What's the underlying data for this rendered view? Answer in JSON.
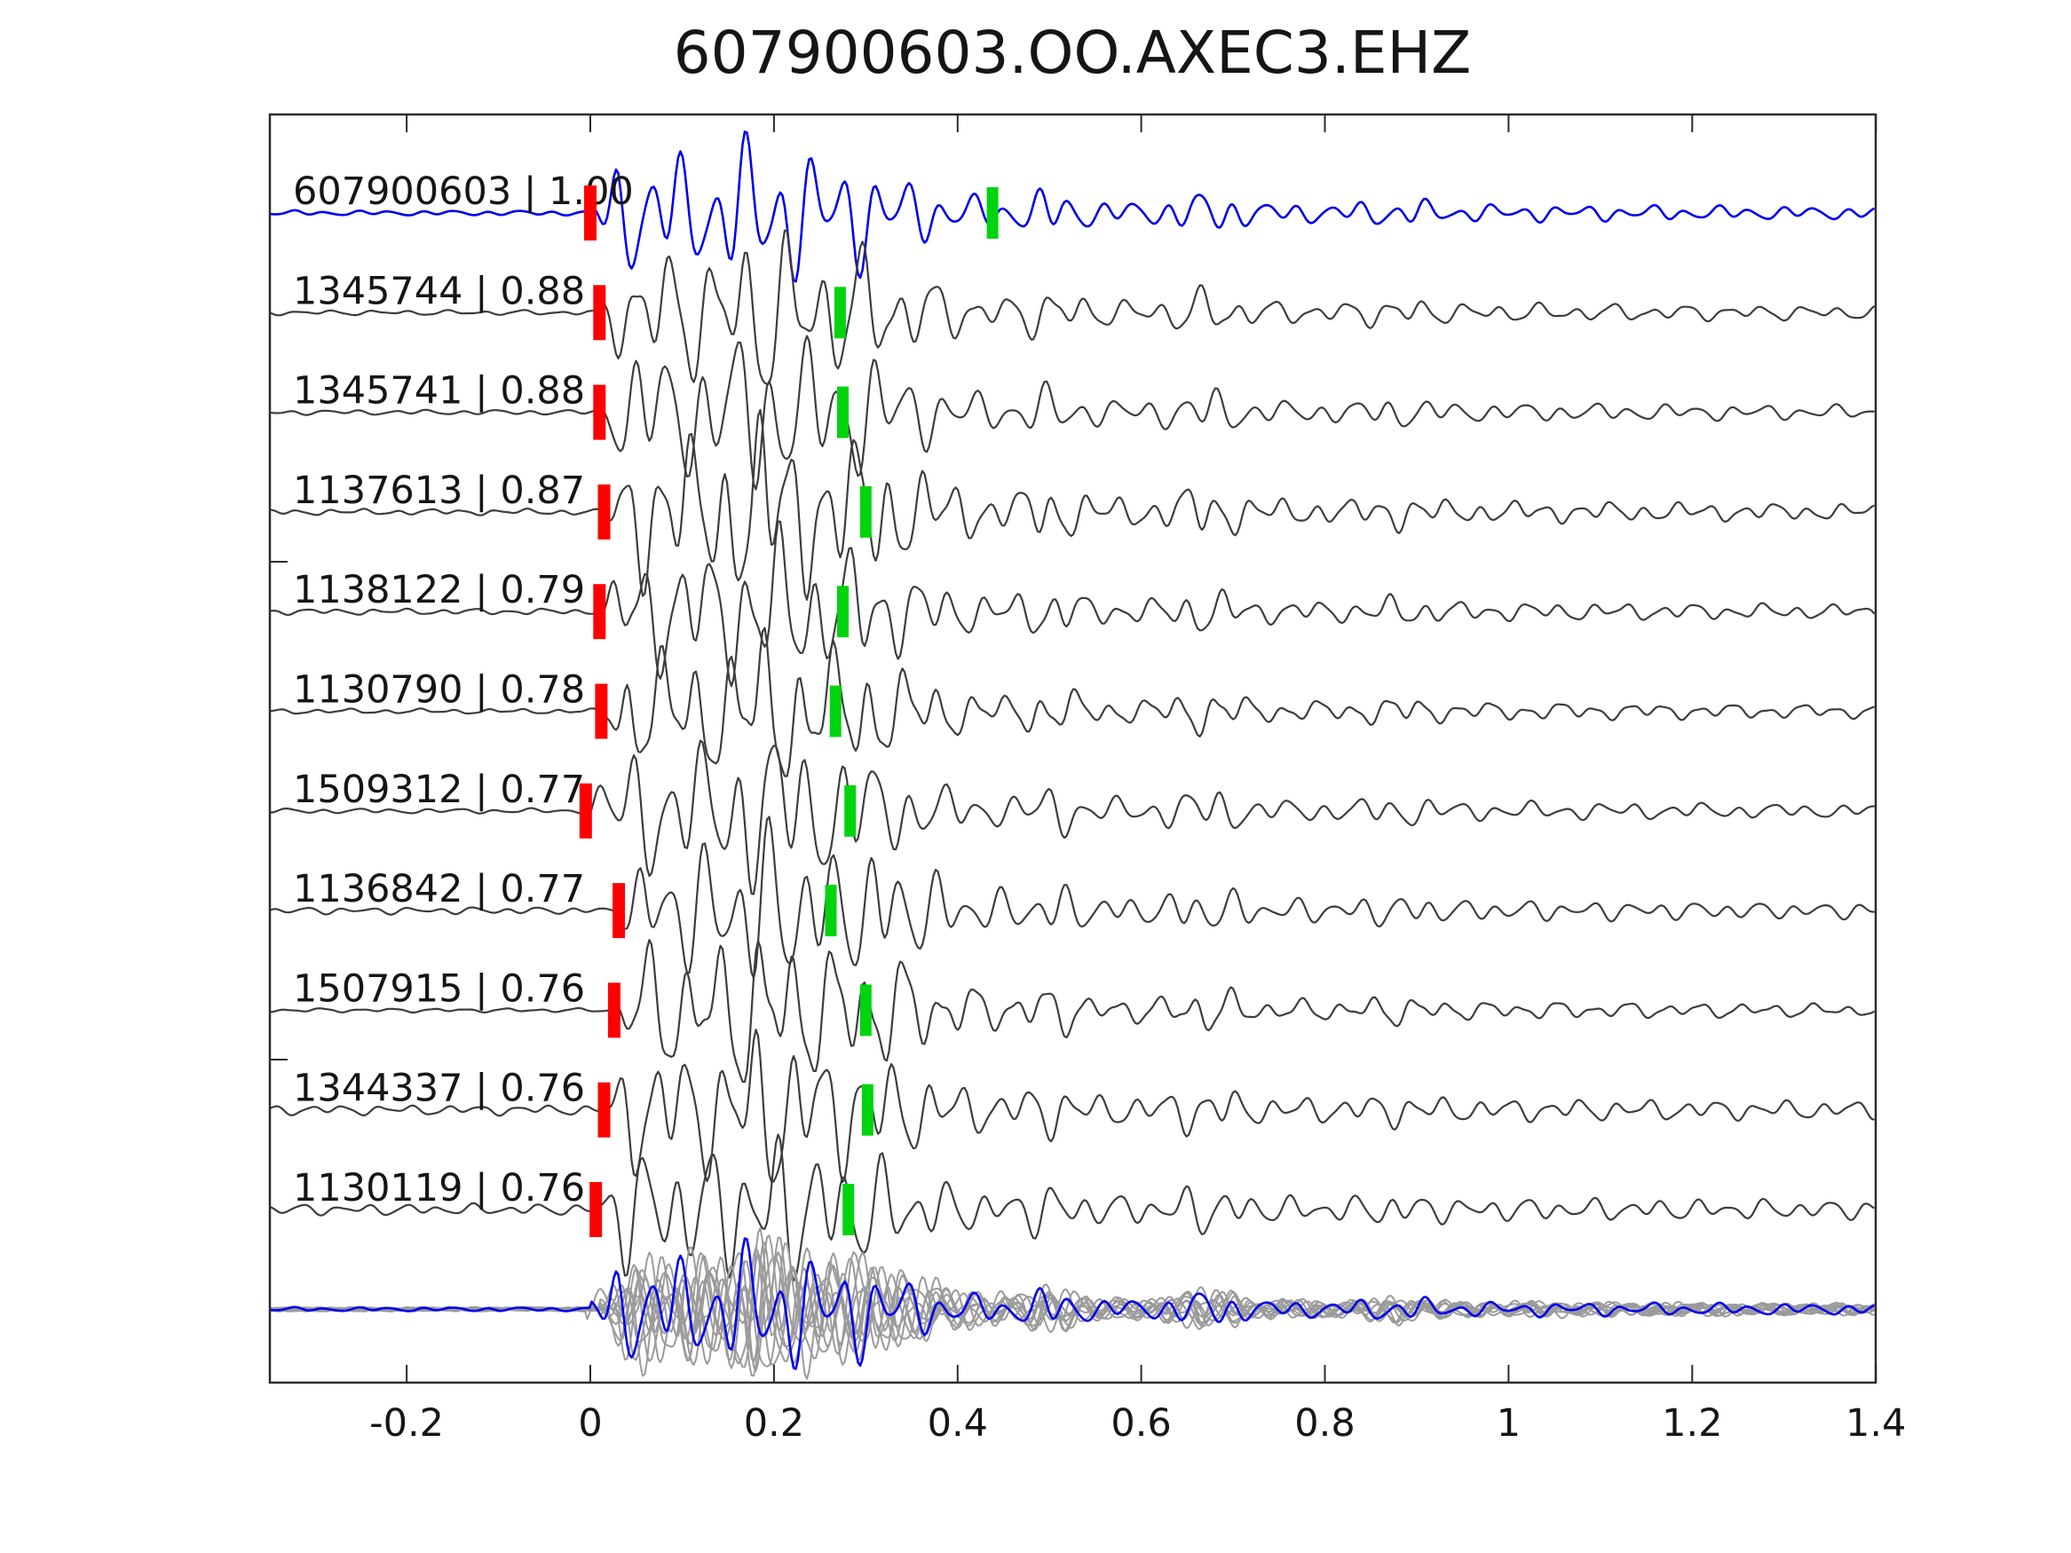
{
  "title": "607900603.OO.AXEC3.EHZ",
  "colors": {
    "template_blue": "#0000ee",
    "detection_gray": "#3d3d3d",
    "overlay_gray": "#9b9b9b",
    "pick_red": "#ff0000",
    "pick_green": "#00d40e",
    "axis": "#2b2b2b",
    "label_text": "#151515",
    "background": "#ffffff"
  },
  "chart_data": {
    "type": "line",
    "title": "607900603.OO.AXEC3.EHZ",
    "xlabel": "",
    "ylabel": "",
    "xlim": [
      -0.349,
      1.4
    ],
    "grid": false,
    "legend": "none",
    "x_ticks": [
      {
        "v": -0.2,
        "label": "-0.2"
      },
      {
        "v": 0,
        "label": "0"
      },
      {
        "v": 0.2,
        "label": "0.2"
      },
      {
        "v": 0.4,
        "label": "0.4"
      },
      {
        "v": 0.6,
        "label": "0.6"
      },
      {
        "v": 0.8,
        "label": "0.8"
      },
      {
        "v": 1,
        "label": "1"
      },
      {
        "v": 1.2,
        "label": "1.2"
      },
      {
        "v": 1.4,
        "label": "1.4"
      }
    ],
    "trace_rows": [
      {
        "label": "607900603 | 1.00",
        "id": "607900603",
        "correlation": 1.0,
        "role": "template",
        "pick_red_t": 0.0,
        "pick_green_t": 0.438
      },
      {
        "label": "1345744 | 0.88",
        "id": "1345744",
        "correlation": 0.88,
        "role": "detection",
        "pick_red_t": 0.01,
        "pick_green_t": 0.272
      },
      {
        "label": "1345741 | 0.88",
        "id": "1345741",
        "correlation": 0.88,
        "role": "detection",
        "pick_red_t": 0.01,
        "pick_green_t": 0.275
      },
      {
        "label": "1137613 | 0.87",
        "id": "1137613",
        "correlation": 0.87,
        "role": "detection",
        "pick_red_t": 0.015,
        "pick_green_t": 0.3
      },
      {
        "label": "1138122 | 0.79",
        "id": "1138122",
        "correlation": 0.79,
        "role": "detection",
        "pick_red_t": 0.01,
        "pick_green_t": 0.275
      },
      {
        "label": "1130790 | 0.78",
        "id": "1130790",
        "correlation": 0.78,
        "role": "detection",
        "pick_red_t": 0.012,
        "pick_green_t": 0.267
      },
      {
        "label": "1509312 | 0.77",
        "id": "1509312",
        "correlation": 0.77,
        "role": "detection",
        "pick_red_t": -0.005,
        "pick_green_t": 0.283
      },
      {
        "label": "1136842 | 0.77",
        "id": "1136842",
        "correlation": 0.77,
        "role": "detection",
        "pick_red_t": 0.031,
        "pick_green_t": 0.262
      },
      {
        "label": "1507915 | 0.76",
        "id": "1507915",
        "correlation": 0.76,
        "role": "detection",
        "pick_red_t": 0.026,
        "pick_green_t": 0.3
      },
      {
        "label": "1344337 | 0.76",
        "id": "1344337",
        "correlation": 0.76,
        "role": "detection",
        "pick_red_t": 0.015,
        "pick_green_t": 0.302
      },
      {
        "label": "1130119 | 0.76",
        "id": "1130119",
        "correlation": 0.76,
        "role": "detection",
        "pick_red_t": 0.006,
        "pick_green_t": 0.281
      }
    ],
    "overlay_row": {
      "description": "all detection waveforms overlaid in gray with template in blue",
      "gray_trace_count": 10,
      "blue_trace": "607900603"
    }
  }
}
